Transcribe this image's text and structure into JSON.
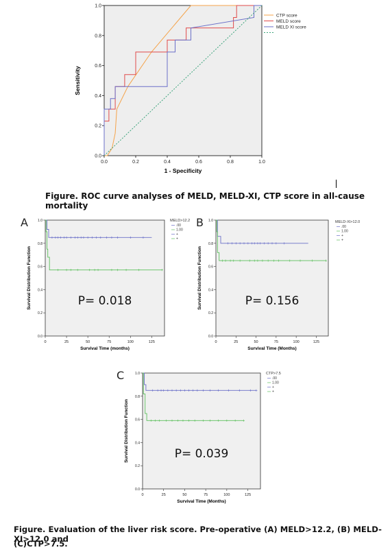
{
  "figure1": {
    "caption": "Figure. ROC curve analyses of MELD, MELD-XI, CTP score in all-cause mortality",
    "chart_data": {
      "type": "line",
      "xlabel": "1 - Specificity",
      "ylabel": "Sensitivity",
      "xlim": [
        0,
        1
      ],
      "ylim": [
        0,
        1
      ],
      "x_ticks": [
        "0.0",
        "0.2",
        "0.4",
        "0.6",
        "0.8",
        "1.0"
      ],
      "y_ticks": [
        "0.0",
        "0.2",
        "0.4",
        "0.6",
        "0.8",
        "1.0"
      ],
      "legend_position": "top-right",
      "series": [
        {
          "name": "CTP score",
          "color": "#f5a34a",
          "points": [
            [
              0,
              0
            ],
            [
              0.02,
              0
            ],
            [
              0.05,
              0.05
            ],
            [
              0.07,
              0.15
            ],
            [
              0.08,
              0.31
            ],
            [
              0.15,
              0.46
            ],
            [
              0.3,
              0.69
            ],
            [
              0.55,
              1.0
            ],
            [
              1,
              1
            ]
          ]
        },
        {
          "name": "MELD score",
          "color": "#e04a4a",
          "points": [
            [
              0,
              0
            ],
            [
              0,
              0.23
            ],
            [
              0.03,
              0.23
            ],
            [
              0.03,
              0.31
            ],
            [
              0.07,
              0.31
            ],
            [
              0.07,
              0.46
            ],
            [
              0.13,
              0.46
            ],
            [
              0.13,
              0.54
            ],
            [
              0.2,
              0.54
            ],
            [
              0.2,
              0.69
            ],
            [
              0.4,
              0.69
            ],
            [
              0.4,
              0.77
            ],
            [
              0.52,
              0.77
            ],
            [
              0.52,
              0.85
            ],
            [
              0.82,
              0.85
            ],
            [
              0.82,
              0.92
            ],
            [
              0.84,
              0.92
            ],
            [
              0.84,
              1.0
            ],
            [
              1,
              1
            ]
          ]
        },
        {
          "name": "MELD XI score",
          "color": "#6a6fc8",
          "points": [
            [
              0,
              0
            ],
            [
              0,
              0.31
            ],
            [
              0.04,
              0.31
            ],
            [
              0.04,
              0.38
            ],
            [
              0.07,
              0.38
            ],
            [
              0.07,
              0.46
            ],
            [
              0.4,
              0.46
            ],
            [
              0.4,
              0.69
            ],
            [
              0.45,
              0.69
            ],
            [
              0.45,
              0.77
            ],
            [
              0.55,
              0.77
            ],
            [
              0.55,
              0.85
            ],
            [
              0.95,
              0.92
            ],
            [
              0.95,
              1.0
            ],
            [
              1,
              1
            ]
          ]
        },
        {
          "name": "",
          "color": "#3aa37a",
          "dashed": true,
          "points": [
            [
              0,
              0
            ],
            [
              1,
              1
            ]
          ]
        }
      ]
    }
  },
  "km": {
    "y_label": "Survival Distribution Function",
    "y_ticks": [
      "0.0",
      "0.2",
      "0.4",
      "0.6",
      "0.8",
      "1.0"
    ],
    "colors": {
      "g0": "#6a6fc8",
      "g1": "#5cbf5c"
    },
    "legend_rows": [
      ".00",
      "1.00",
      "+",
      "+"
    ],
    "panels": [
      {
        "letter": "A",
        "legend_title": "MELD>12.2",
        "p_text": "P= 0.018",
        "x_label": "Survival Time (months)",
        "x_ticks": [
          "0",
          "25",
          "50",
          "75",
          "100",
          "125"
        ],
        "xmax": 140,
        "chart_data": {
          "type": "line",
          "series": [
            {
              "name": ".00",
              "steps": [
                [
                  0,
                  1.0
                ],
                [
                  2,
                  0.92
                ],
                [
                  4,
                  0.85
                ],
                [
                  125,
                  0.85
                ]
              ],
              "censor": [
                8,
                12,
                15,
                18,
                22,
                25,
                30,
                35,
                38,
                42,
                45,
                50,
                55,
                60,
                65,
                72,
                78,
                85,
                100,
                115
              ]
            },
            {
              "name": "1.00",
              "steps": [
                [
                  0,
                  1.0
                ],
                [
                  1,
                  0.9
                ],
                [
                  2,
                  0.75
                ],
                [
                  3,
                  0.68
                ],
                [
                  5,
                  0.57
                ],
                [
                  137,
                  0.57
                ]
              ],
              "censor": [
                15,
                25,
                30,
                38,
                52,
                58,
                62,
                78,
                85,
                95,
                110,
                137
              ]
            }
          ]
        }
      },
      {
        "letter": "B",
        "legend_title": "MELD-XI>12.0",
        "p_text": "P= 0.156",
        "x_label": "Survival Time (Months)",
        "x_ticks": [
          "0",
          "25",
          "50",
          "75",
          "100",
          "125"
        ],
        "xmax": 140,
        "chart_data": {
          "type": "line",
          "series": [
            {
              "name": ".00",
              "steps": [
                [
                  0,
                  1.0
                ],
                [
                  2,
                  0.86
                ],
                [
                  6,
                  0.8
                ],
                [
                  115,
                  0.8
                ]
              ],
              "censor": [
                15,
                20,
                25,
                30,
                35,
                40,
                45,
                48,
                52,
                55,
                60,
                65,
                70,
                75,
                85
              ]
            },
            {
              "name": "1.00",
              "steps": [
                [
                  0,
                  1.0
                ],
                [
                  1,
                  0.9
                ],
                [
                  2,
                  0.72
                ],
                [
                  4,
                  0.65
                ],
                [
                  137,
                  0.65
                ]
              ],
              "censor": [
                8,
                12,
                18,
                22,
                30,
                42,
                48,
                52,
                58,
                65,
                72,
                78,
                92,
                105,
                120,
                137
              ]
            }
          ]
        }
      },
      {
        "letter": "C",
        "legend_title": "CTP>7.5",
        "p_text": "P= 0.039",
        "x_label": "Survival Time (Months)",
        "x_ticks": [
          "0",
          "25",
          "50",
          "75",
          "100",
          "125"
        ],
        "xmax": 140,
        "chart_data": {
          "type": "line",
          "series": [
            {
              "name": ".00",
              "steps": [
                [
                  0,
                  1.0
                ],
                [
                  2,
                  0.9
                ],
                [
                  4,
                  0.85
                ],
                [
                  135,
                  0.85
                ]
              ],
              "censor": [
                12,
                18,
                22,
                25,
                30,
                35,
                40,
                45,
                50,
                55,
                60,
                65,
                72,
                80,
                90,
                102,
                115,
                128,
                135
              ]
            },
            {
              "name": "1.00",
              "steps": [
                [
                  0,
                  1.0
                ],
                [
                  1,
                  0.82
                ],
                [
                  3,
                  0.65
                ],
                [
                  5,
                  0.59
                ],
                [
                  120,
                  0.59
                ]
              ],
              "censor": [
                10,
                15,
                20,
                28,
                35,
                42,
                48,
                55,
                62,
                72,
                80,
                90,
                100,
                110,
                120
              ]
            }
          ]
        }
      }
    ],
    "caption_line1": "Figure. Evaluation of the liver risk score. Pre-operative (A) MELD>12.2, (B) MELD-XI>12.0 and",
    "caption_line2": "(C)CTP>7.5."
  }
}
